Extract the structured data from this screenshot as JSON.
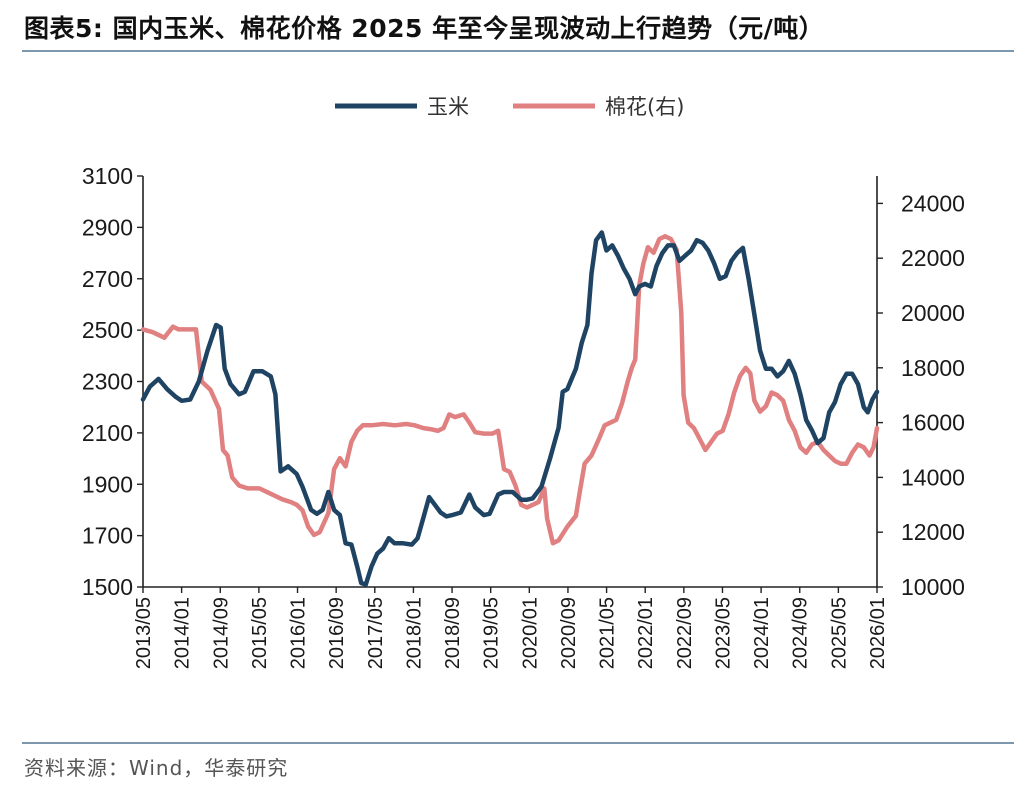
{
  "header": {
    "title": "图表5:   国内玉米、棉花价格 2025 年至今呈现波动上行趋势（元/吨）"
  },
  "footer": {
    "source": "资料来源：Wind，华泰研究"
  },
  "colors": {
    "corn": "#1f4463",
    "cotton": "#e08080",
    "rule": "#7f97ad"
  },
  "chart_data": {
    "type": "line",
    "title": "国内玉米、棉花价格 2025 年至今呈现波动上行趋势（元/吨）",
    "legend_position": "top-center",
    "grid": false,
    "x_tick_labels": [
      "2013/05",
      "2014/01",
      "2014/09",
      "2015/05",
      "2016/01",
      "2016/09",
      "2017/05",
      "2018/01",
      "2018/09",
      "2019/05",
      "2020/01",
      "2020/09",
      "2021/05",
      "2022/01",
      "2022/09",
      "2023/05",
      "2024/01",
      "2024/09",
      "2025/05",
      "2026/01"
    ],
    "x_range": [
      2013.33,
      2026.08
    ],
    "left_axis": {
      "range": [
        1500,
        3100
      ],
      "ticks": [
        1500,
        1700,
        1900,
        2100,
        2300,
        2500,
        2700,
        2900,
        3100
      ]
    },
    "right_axis": {
      "range": [
        10000,
        25000
      ],
      "ticks": [
        10000,
        12000,
        14000,
        16000,
        18000,
        20000,
        22000,
        24000
      ]
    },
    "series": [
      {
        "name": "玉米",
        "axis": "left",
        "points": [
          [
            2013.33,
            2230
          ],
          [
            2013.45,
            2280
          ],
          [
            2013.6,
            2310
          ],
          [
            2013.75,
            2270
          ],
          [
            2013.9,
            2240
          ],
          [
            2014.0,
            2225
          ],
          [
            2014.15,
            2230
          ],
          [
            2014.3,
            2300
          ],
          [
            2014.45,
            2420
          ],
          [
            2014.6,
            2520
          ],
          [
            2014.68,
            2510
          ],
          [
            2014.75,
            2350
          ],
          [
            2014.85,
            2290
          ],
          [
            2015.0,
            2250
          ],
          [
            2015.1,
            2260
          ],
          [
            2015.25,
            2340
          ],
          [
            2015.4,
            2340
          ],
          [
            2015.55,
            2320
          ],
          [
            2015.63,
            2250
          ],
          [
            2015.72,
            1950
          ],
          [
            2015.85,
            1970
          ],
          [
            2016.0,
            1940
          ],
          [
            2016.1,
            1890
          ],
          [
            2016.25,
            1800
          ],
          [
            2016.35,
            1785
          ],
          [
            2016.45,
            1800
          ],
          [
            2016.55,
            1870
          ],
          [
            2016.65,
            1800
          ],
          [
            2016.75,
            1780
          ],
          [
            2016.85,
            1670
          ],
          [
            2016.95,
            1665
          ],
          [
            2017.05,
            1580
          ],
          [
            2017.12,
            1515
          ],
          [
            2017.2,
            1510
          ],
          [
            2017.3,
            1580
          ],
          [
            2017.4,
            1630
          ],
          [
            2017.5,
            1650
          ],
          [
            2017.6,
            1690
          ],
          [
            2017.7,
            1670
          ],
          [
            2017.85,
            1670
          ],
          [
            2018.0,
            1665
          ],
          [
            2018.1,
            1690
          ],
          [
            2018.2,
            1770
          ],
          [
            2018.3,
            1850
          ],
          [
            2018.4,
            1820
          ],
          [
            2018.5,
            1790
          ],
          [
            2018.6,
            1775
          ],
          [
            2018.7,
            1780
          ],
          [
            2018.85,
            1790
          ],
          [
            2019.0,
            1860
          ],
          [
            2019.1,
            1810
          ],
          [
            2019.25,
            1780
          ],
          [
            2019.35,
            1785
          ],
          [
            2019.5,
            1860
          ],
          [
            2019.6,
            1870
          ],
          [
            2019.75,
            1870
          ],
          [
            2019.9,
            1840
          ],
          [
            2020.0,
            1840
          ],
          [
            2020.1,
            1845
          ],
          [
            2020.25,
            1890
          ],
          [
            2020.4,
            2000
          ],
          [
            2020.55,
            2120
          ],
          [
            2020.62,
            2260
          ],
          [
            2020.7,
            2270
          ],
          [
            2020.85,
            2350
          ],
          [
            2020.95,
            2450
          ],
          [
            2021.05,
            2520
          ],
          [
            2021.12,
            2720
          ],
          [
            2021.2,
            2850
          ],
          [
            2021.3,
            2880
          ],
          [
            2021.38,
            2810
          ],
          [
            2021.48,
            2830
          ],
          [
            2021.58,
            2790
          ],
          [
            2021.68,
            2740
          ],
          [
            2021.78,
            2700
          ],
          [
            2021.88,
            2640
          ],
          [
            2021.95,
            2670
          ],
          [
            2022.05,
            2680
          ],
          [
            2022.15,
            2670
          ],
          [
            2022.25,
            2750
          ],
          [
            2022.35,
            2800
          ],
          [
            2022.45,
            2830
          ],
          [
            2022.55,
            2830
          ],
          [
            2022.65,
            2770
          ],
          [
            2022.75,
            2790
          ],
          [
            2022.85,
            2810
          ],
          [
            2022.95,
            2850
          ],
          [
            2023.05,
            2840
          ],
          [
            2023.15,
            2810
          ],
          [
            2023.25,
            2760
          ],
          [
            2023.35,
            2700
          ],
          [
            2023.45,
            2710
          ],
          [
            2023.55,
            2770
          ],
          [
            2023.65,
            2800
          ],
          [
            2023.75,
            2820
          ],
          [
            2023.85,
            2700
          ],
          [
            2023.95,
            2560
          ],
          [
            2024.05,
            2420
          ],
          [
            2024.15,
            2350
          ],
          [
            2024.25,
            2350
          ],
          [
            2024.35,
            2320
          ],
          [
            2024.45,
            2340
          ],
          [
            2024.55,
            2380
          ],
          [
            2024.65,
            2330
          ],
          [
            2024.75,
            2250
          ],
          [
            2024.85,
            2150
          ],
          [
            2024.95,
            2110
          ],
          [
            2025.05,
            2060
          ],
          [
            2025.15,
            2080
          ],
          [
            2025.25,
            2180
          ],
          [
            2025.35,
            2220
          ],
          [
            2025.45,
            2290
          ],
          [
            2025.55,
            2330
          ],
          [
            2025.65,
            2330
          ],
          [
            2025.75,
            2290
          ],
          [
            2025.85,
            2200
          ],
          [
            2025.92,
            2180
          ],
          [
            2026.0,
            2230
          ],
          [
            2026.08,
            2260
          ]
        ]
      },
      {
        "name": "棉花(右)",
        "axis": "right",
        "points": [
          [
            2013.33,
            19400
          ],
          [
            2013.5,
            19300
          ],
          [
            2013.7,
            19100
          ],
          [
            2013.85,
            19500
          ],
          [
            2013.95,
            19400
          ],
          [
            2014.1,
            19400
          ],
          [
            2014.25,
            19400
          ],
          [
            2014.35,
            17500
          ],
          [
            2014.5,
            17200
          ],
          [
            2014.65,
            16500
          ],
          [
            2014.72,
            15000
          ],
          [
            2014.8,
            14800
          ],
          [
            2014.88,
            14000
          ],
          [
            2015.0,
            13700
          ],
          [
            2015.15,
            13600
          ],
          [
            2015.35,
            13600
          ],
          [
            2015.55,
            13400
          ],
          [
            2015.75,
            13200
          ],
          [
            2015.9,
            13100
          ],
          [
            2016.0,
            13000
          ],
          [
            2016.1,
            12800
          ],
          [
            2016.2,
            12200
          ],
          [
            2016.3,
            11900
          ],
          [
            2016.4,
            12000
          ],
          [
            2016.55,
            12700
          ],
          [
            2016.65,
            14300
          ],
          [
            2016.75,
            14700
          ],
          [
            2016.85,
            14400
          ],
          [
            2016.95,
            15300
          ],
          [
            2017.05,
            15700
          ],
          [
            2017.15,
            15900
          ],
          [
            2017.3,
            15900
          ],
          [
            2017.5,
            15950
          ],
          [
            2017.7,
            15900
          ],
          [
            2017.9,
            15950
          ],
          [
            2018.05,
            15900
          ],
          [
            2018.2,
            15800
          ],
          [
            2018.35,
            15750
          ],
          [
            2018.45,
            15700
          ],
          [
            2018.55,
            15800
          ],
          [
            2018.65,
            16300
          ],
          [
            2018.75,
            16200
          ],
          [
            2018.9,
            16300
          ],
          [
            2019.0,
            16000
          ],
          [
            2019.1,
            15650
          ],
          [
            2019.25,
            15600
          ],
          [
            2019.4,
            15600
          ],
          [
            2019.5,
            15700
          ],
          [
            2019.6,
            14300
          ],
          [
            2019.7,
            14200
          ],
          [
            2019.8,
            13700
          ],
          [
            2019.9,
            13000
          ],
          [
            2020.0,
            12900
          ],
          [
            2020.1,
            13000
          ],
          [
            2020.2,
            13100
          ],
          [
            2020.3,
            13600
          ],
          [
            2020.35,
            12500
          ],
          [
            2020.45,
            11600
          ],
          [
            2020.55,
            11700
          ],
          [
            2020.7,
            12200
          ],
          [
            2020.85,
            12600
          ],
          [
            2020.92,
            13500
          ],
          [
            2021.0,
            14500
          ],
          [
            2021.12,
            14800
          ],
          [
            2021.25,
            15400
          ],
          [
            2021.35,
            15900
          ],
          [
            2021.45,
            16000
          ],
          [
            2021.55,
            16100
          ],
          [
            2021.65,
            16700
          ],
          [
            2021.75,
            17500
          ],
          [
            2021.82,
            18000
          ],
          [
            2021.88,
            18300
          ],
          [
            2021.95,
            21000
          ],
          [
            2022.02,
            21800
          ],
          [
            2022.1,
            22400
          ],
          [
            2022.2,
            22200
          ],
          [
            2022.3,
            22700
          ],
          [
            2022.4,
            22800
          ],
          [
            2022.5,
            22700
          ],
          [
            2022.6,
            22300
          ],
          [
            2022.68,
            20000
          ],
          [
            2022.72,
            17000
          ],
          [
            2022.8,
            16000
          ],
          [
            2022.9,
            15800
          ],
          [
            2023.0,
            15400
          ],
          [
            2023.1,
            15000
          ],
          [
            2023.2,
            15300
          ],
          [
            2023.3,
            15600
          ],
          [
            2023.4,
            15700
          ],
          [
            2023.5,
            16300
          ],
          [
            2023.6,
            17100
          ],
          [
            2023.7,
            17700
          ],
          [
            2023.8,
            18000
          ],
          [
            2023.88,
            17800
          ],
          [
            2023.95,
            16800
          ],
          [
            2024.05,
            16400
          ],
          [
            2024.15,
            16600
          ],
          [
            2024.25,
            17100
          ],
          [
            2024.35,
            17000
          ],
          [
            2024.45,
            16800
          ],
          [
            2024.55,
            16100
          ],
          [
            2024.65,
            15700
          ],
          [
            2024.75,
            15100
          ],
          [
            2024.85,
            14900
          ],
          [
            2024.95,
            15200
          ],
          [
            2025.05,
            15300
          ],
          [
            2025.15,
            15000
          ],
          [
            2025.25,
            14800
          ],
          [
            2025.35,
            14600
          ],
          [
            2025.45,
            14500
          ],
          [
            2025.55,
            14500
          ],
          [
            2025.65,
            14900
          ],
          [
            2025.75,
            15200
          ],
          [
            2025.85,
            15100
          ],
          [
            2025.95,
            14800
          ],
          [
            2026.02,
            15100
          ],
          [
            2026.08,
            15800
          ]
        ]
      }
    ]
  }
}
